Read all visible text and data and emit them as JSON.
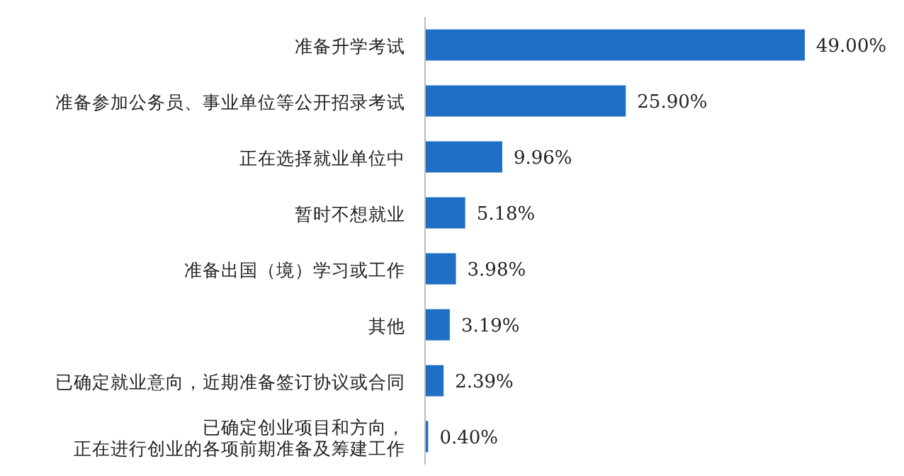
{
  "chart_data": {
    "type": "bar",
    "orientation": "horizontal",
    "categories": [
      "准备升学考试",
      "准备参加公务员、事业单位等公开招录考试",
      "正在选择就业单位中",
      "暂时不想就业",
      "准备出国（境）学习或工作",
      "其他",
      "已确定就业意向，近期准备签订协议或合同",
      "已确定创业项目和方向，正在进行创业的各项前期准备及筹建工作"
    ],
    "values": [
      49.0,
      25.9,
      9.96,
      5.18,
      3.98,
      3.19,
      2.39,
      0.4
    ],
    "value_labels": [
      "49.00%",
      "25.90%",
      "9.96%",
      "5.18%",
      "3.98%",
      "3.19%",
      "2.39%",
      "0.40%"
    ],
    "color": "#1f6fc5"
  }
}
